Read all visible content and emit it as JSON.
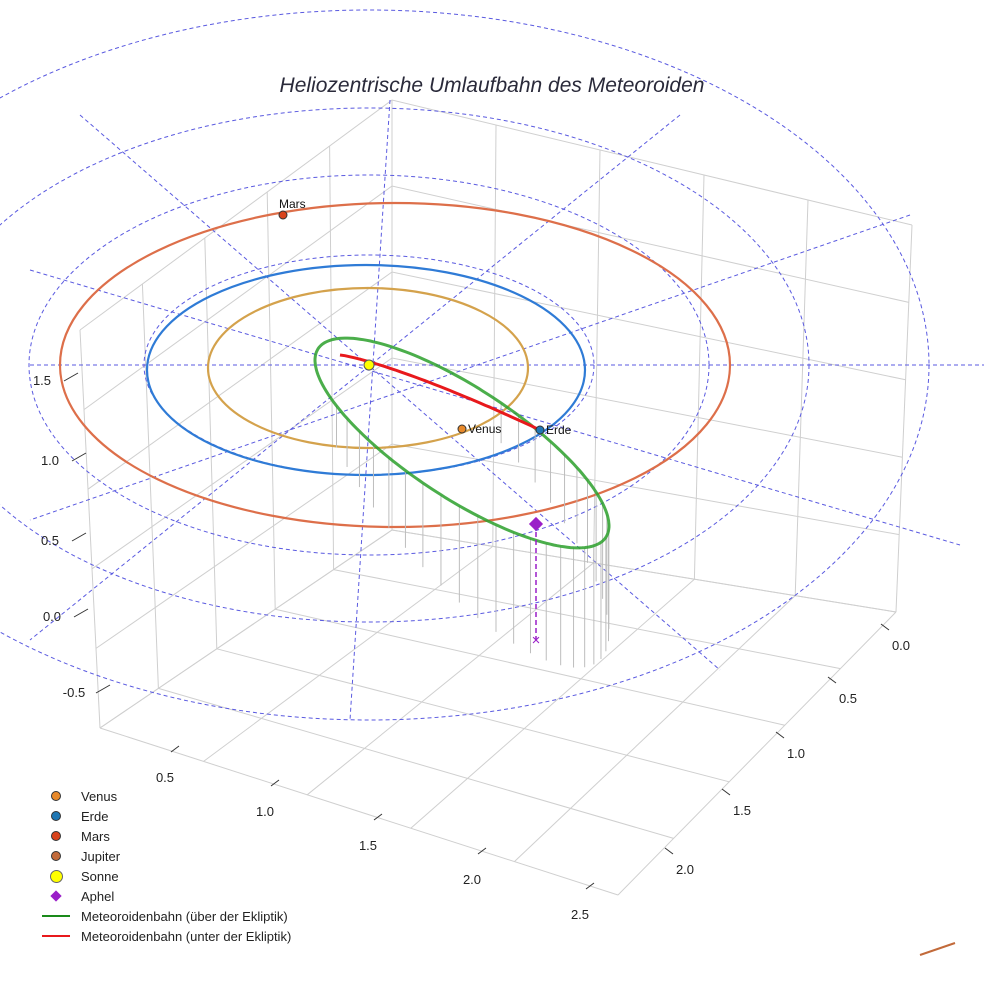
{
  "chart_data": {
    "type": "scatter3d",
    "title": "Heliozentrische Umlaufbahn des Meteoroiden",
    "axes": {
      "x": {
        "ticks": [
          "0.5",
          "1.0",
          "1.5",
          "2.0",
          "2.5"
        ]
      },
      "y": {
        "ticks": [
          "0.0",
          "0.5",
          "1.0",
          "1.5",
          "2.0"
        ]
      },
      "z": {
        "ticks": [
          "-0.5",
          "0.0",
          "0.5",
          "1.0",
          "1.5"
        ]
      }
    },
    "grid": true,
    "legend_position": "bottom-left",
    "orbits": [
      {
        "name": "Venus orbit",
        "radius_au": 0.72,
        "color": "#d4a24c"
      },
      {
        "name": "Erde orbit",
        "radius_au": 1.0,
        "color": "#2f7bd6"
      },
      {
        "name": "Mars orbit",
        "radius_au": 1.52,
        "color": "#dd6f4a"
      }
    ],
    "markers": [
      {
        "name": "Venus",
        "label": "Venus",
        "color": "#e8892a"
      },
      {
        "name": "Erde",
        "label": "Erde",
        "color": "#1f77b4"
      },
      {
        "name": "Mars",
        "label": "Mars",
        "color": "#d9431c"
      },
      {
        "name": "Sonne",
        "color": "#ffff00"
      },
      {
        "name": "Aphel",
        "color": "#9a1fc8"
      }
    ],
    "meteoroid_orbit": {
      "above_ecliptic_color": "#2ca02c",
      "below_ecliptic_color": "#e8191c"
    },
    "legend": [
      {
        "label": "Venus",
        "symbol": "dot",
        "color": "#e8892a"
      },
      {
        "label": "Erde",
        "symbol": "dot",
        "color": "#1f77b4"
      },
      {
        "label": "Mars",
        "symbol": "dot",
        "color": "#d9431c"
      },
      {
        "label": "Jupiter",
        "symbol": "dot",
        "color": "#c26a3a"
      },
      {
        "label": "Sonne",
        "symbol": "dot-big",
        "color": "#ffff00"
      },
      {
        "label": "Aphel",
        "symbol": "diamond",
        "color": "#9a1fc8"
      },
      {
        "label": "Meteoroidenbahn (über der Ekliptik)",
        "symbol": "line",
        "color": "#1a8a1a"
      },
      {
        "label": "Meteoroidenbahn (unter der Ekliptik)",
        "symbol": "line",
        "color": "#e8191c"
      }
    ]
  }
}
